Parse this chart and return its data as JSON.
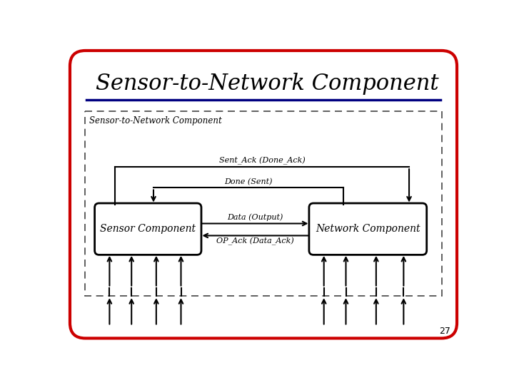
{
  "title": "Sensor-to-Network Component",
  "slide_bg": "#ffffff",
  "border_color": "#cc0000",
  "title_color": "#000000",
  "title_fontsize": 22,
  "separator_color": "#000080",
  "page_number": "27",
  "dashed_box_label": "Sensor-to-Network Component",
  "sensor_box_label": "Sensor Component",
  "network_box_label": "Network Component",
  "arrow_data_label": "Data (Output)",
  "arrow_op_ack_label": "OP_Ack (Data_Ack)",
  "arrow_done_label": "Done (Sent)",
  "arrow_sent_ack_label": "Sent_Ack (Done_Ack)"
}
